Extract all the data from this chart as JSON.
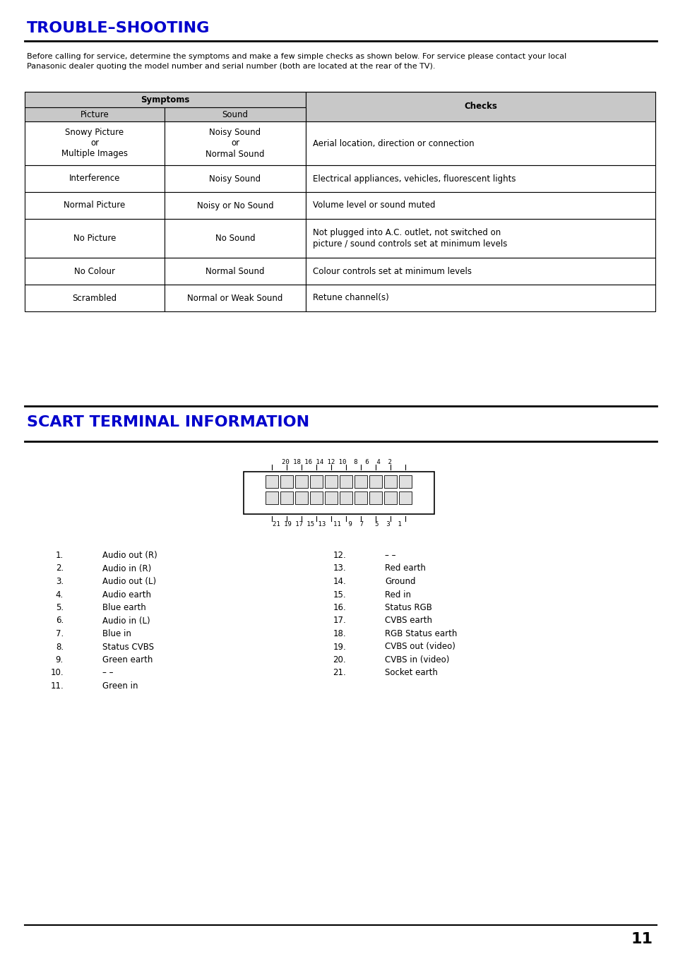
{
  "title1": "TROUBLE–SHOOTING",
  "title2": "SCART TERMINAL INFORMATION",
  "title_color": "#0000CC",
  "intro_text_line1": "Before calling for service, determine the symptoms and make a few simple checks as shown below. For service please contact your local",
  "intro_text_line2": "Panasonic dealer quoting the model number and serial number (both are located at the rear of the TV).",
  "table_header_symptoms": "Symptoms",
  "table_header_picture": "Picture",
  "table_header_sound": "Sound",
  "table_header_checks": "Checks",
  "table_rows": [
    {
      "picture": "Snowy Picture\nor\nMultiple Images",
      "sound": "Noisy Sound\nor\nNormal Sound",
      "checks": "Aerial location, direction or connection"
    },
    {
      "picture": "Interference",
      "sound": "Noisy Sound",
      "checks": "Electrical appliances, vehicles, fluorescent lights"
    },
    {
      "picture": "Normal Picture",
      "sound": "Noisy or No Sound",
      "checks": "Volume level or sound muted"
    },
    {
      "picture": "No Picture",
      "sound": "No Sound",
      "checks": "Not plugged into A.C. outlet, not switched on\npicture / sound controls set at minimum levels"
    },
    {
      "picture": "No Colour",
      "sound": "Normal Sound",
      "checks": "Colour controls set at minimum levels"
    },
    {
      "picture": "Scrambled",
      "sound": "Normal or Weak Sound",
      "checks": "Retune channel(s)"
    }
  ],
  "scart_left_items": [
    [
      "1.",
      "Audio out (R)"
    ],
    [
      "2.",
      "Audio in (R)"
    ],
    [
      "3.",
      "Audio out (L)"
    ],
    [
      "4.",
      "Audio earth"
    ],
    [
      "5.",
      "Blue earth"
    ],
    [
      "6.",
      "Audio in (L)"
    ],
    [
      "7.",
      "Blue in"
    ],
    [
      "8.",
      "Status CVBS"
    ],
    [
      "9.",
      "Green earth"
    ],
    [
      "10.",
      "– –"
    ],
    [
      "11.",
      "Green in"
    ]
  ],
  "scart_right_items": [
    [
      "12.",
      "– –"
    ],
    [
      "13.",
      "Red earth"
    ],
    [
      "14.",
      "Ground"
    ],
    [
      "15.",
      "Red in"
    ],
    [
      "16.",
      "Status RGB"
    ],
    [
      "17.",
      "CVBS earth"
    ],
    [
      "18.",
      "RGB Status earth"
    ],
    [
      "19.",
      "CVBS out (video)"
    ],
    [
      "20.",
      "CVBS in (video)"
    ],
    [
      "21.",
      "Socket earth"
    ]
  ],
  "page_number": "11",
  "top_label": "20 18 16 14 12 10  8  6  4  2",
  "bottom_label": "21 19 17 15 13  11  9  7   5  3  1"
}
